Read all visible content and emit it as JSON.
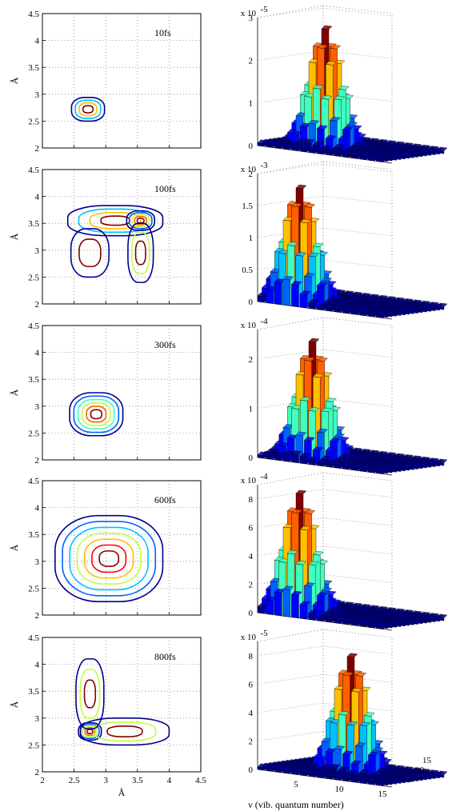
{
  "figure": {
    "contour_x_label": "Å",
    "contour_y_label": "Å",
    "hist_x_label": "ν (vib. quantum number)"
  },
  "chart_data": [
    {
      "type": "contour",
      "panel_label": "10fs",
      "xlim": [
        2,
        4.5
      ],
      "ylim": [
        2,
        4.5
      ],
      "yticks": [
        "2",
        "2.5",
        "3",
        "3.5",
        "4",
        "4.5"
      ],
      "xticks": [],
      "ylabel": "Å",
      "grid": true,
      "features": [
        {
          "cx": 2.72,
          "cy": 2.72,
          "rx": 0.26,
          "ry": 0.22,
          "levels": 4
        }
      ]
    },
    {
      "type": "bar3d",
      "scale_label": "x 10",
      "scale_exp": "-5",
      "zticks": [
        "0",
        "1",
        "2",
        "3"
      ],
      "zmax": 3,
      "peak": {
        "x": 5,
        "y": 5,
        "value": 2.8
      }
    },
    {
      "type": "contour",
      "panel_label": "100fs",
      "xlim": [
        2,
        4.5
      ],
      "ylim": [
        2,
        4.5
      ],
      "yticks": [
        "2",
        "2.5",
        "3",
        "3.5",
        "4",
        "4.5"
      ],
      "xticks": [],
      "ylabel": "Å",
      "grid": true,
      "features": [
        {
          "cx": 3.15,
          "cy": 3.55,
          "rx": 0.75,
          "ry": 0.28,
          "levels": 4
        },
        {
          "cx": 3.55,
          "cy": 3.55,
          "rx": 0.22,
          "ry": 0.18,
          "levels": 5
        },
        {
          "cx": 3.55,
          "cy": 2.95,
          "rx": 0.2,
          "ry": 0.55,
          "levels": 3
        },
        {
          "cx": 2.75,
          "cy": 2.95,
          "rx": 0.3,
          "ry": 0.45,
          "levels": 2
        }
      ]
    },
    {
      "type": "bar3d",
      "scale_label": "x 10",
      "scale_exp": "-3",
      "zticks": [
        "0",
        "0.5",
        "1",
        "1.5",
        "2"
      ],
      "zmax": 2,
      "peak": {
        "x": 3,
        "y": 3,
        "value": 1.8
      }
    },
    {
      "type": "contour",
      "panel_label": "300fs",
      "xlim": [
        2,
        4.5
      ],
      "ylim": [
        2,
        4.5
      ],
      "yticks": [
        "2",
        "2.5",
        "3",
        "3.5",
        "4",
        "4.5"
      ],
      "xticks": [],
      "ylabel": "Å",
      "grid": true,
      "features": [
        {
          "cx": 2.85,
          "cy": 2.85,
          "rx": 0.42,
          "ry": 0.4,
          "levels": 6
        }
      ]
    },
    {
      "type": "bar3d",
      "scale_label": "x 10",
      "scale_exp": "-4",
      "zticks": [
        "0",
        "1",
        "2"
      ],
      "zmax": 2.6,
      "peak": {
        "x": 4,
        "y": 4,
        "value": 2.4
      }
    },
    {
      "type": "contour",
      "panel_label": "600fs",
      "xlim": [
        2,
        4.5
      ],
      "ylim": [
        2,
        4.5
      ],
      "yticks": [
        "2",
        "2.5",
        "3",
        "3.5",
        "4",
        "4.5"
      ],
      "xticks": [],
      "ylabel": "Å",
      "grid": true,
      "features": [
        {
          "cx": 3.05,
          "cy": 3.05,
          "rx": 0.85,
          "ry": 0.8,
          "levels": 7
        }
      ]
    },
    {
      "type": "bar3d",
      "scale_label": "x 10",
      "scale_exp": "-4",
      "zticks": [
        "0",
        "2",
        "4",
        "6",
        "8"
      ],
      "zmax": 9,
      "peak": {
        "x": 3,
        "y": 3,
        "value": 8.5
      }
    },
    {
      "type": "contour",
      "panel_label": "800fs",
      "xlim": [
        2,
        4.5
      ],
      "ylim": [
        2,
        4.5
      ],
      "yticks": [
        "2",
        "2.5",
        "3",
        "3.5",
        "4",
        "4.5"
      ],
      "xticks": [
        "2",
        "2.5",
        "3",
        "3.5",
        "4",
        "4.5"
      ],
      "ylabel": "Å",
      "xlabel": "Å",
      "grid": true,
      "features": [
        {
          "cx": 2.75,
          "cy": 2.75,
          "rx": 0.18,
          "ry": 0.16,
          "levels": 5
        },
        {
          "cx": 3.3,
          "cy": 2.75,
          "rx": 0.7,
          "ry": 0.25,
          "levels": 3
        },
        {
          "cx": 2.75,
          "cy": 3.45,
          "rx": 0.22,
          "ry": 0.65,
          "levels": 3
        }
      ]
    },
    {
      "type": "bar3d",
      "scale_label": "x 10",
      "scale_exp": "-5",
      "zticks": [
        "0",
        "2",
        "4",
        "6",
        "8"
      ],
      "zmax": 9,
      "xticks": [
        "5",
        "10",
        "15"
      ],
      "yticks": [
        "5",
        "10",
        "15"
      ],
      "xlabel": "ν (vib. quantum number)",
      "peak": {
        "x": 7,
        "y": 7,
        "value": 8.2
      }
    }
  ]
}
